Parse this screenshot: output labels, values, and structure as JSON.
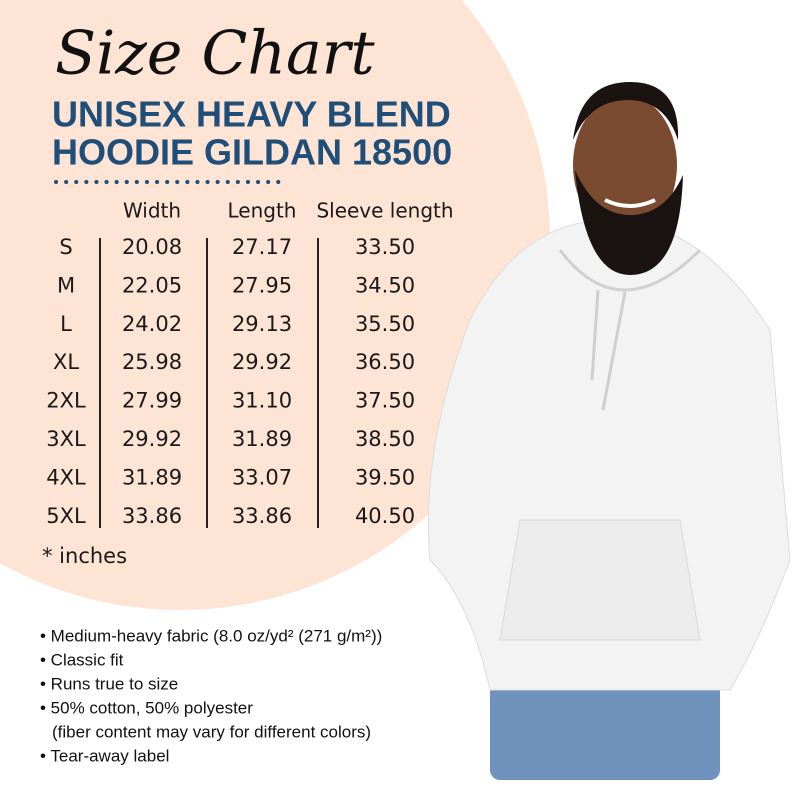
{
  "title": "Size Chart",
  "subtitle": [
    "UNISEX HEAVY BLEND",
    "HOODIE GILDAN 18500"
  ],
  "table": {
    "headers": [
      "Width",
      "Length",
      "Sleeve length"
    ],
    "rows": [
      {
        "size": "S",
        "values": [
          "20.08",
          "27.17",
          "33.50"
        ]
      },
      {
        "size": "M",
        "values": [
          "22.05",
          "27.95",
          "34.50"
        ]
      },
      {
        "size": "L",
        "values": [
          "24.02",
          "29.13",
          "35.50"
        ]
      },
      {
        "size": "XL",
        "values": [
          "25.98",
          "29.92",
          "36.50"
        ]
      },
      {
        "size": "2XL",
        "values": [
          "27.99",
          "31.10",
          "37.50"
        ]
      },
      {
        "size": "3XL",
        "values": [
          "29.92",
          "31.89",
          "38.50"
        ]
      },
      {
        "size": "4XL",
        "values": [
          "31.89",
          "33.07",
          "39.50"
        ]
      },
      {
        "size": "5XL",
        "values": [
          "33.86",
          "33.86",
          "40.50"
        ]
      }
    ],
    "note": "* inches"
  },
  "features": [
    [
      "• Medium-heavy fabric (8.0 oz/yd² (271 g/m²))"
    ],
    [
      "• Classic fit"
    ],
    [
      "• Runs true to size"
    ],
    [
      "• 50% cotton, 50% polyester",
      "(fiber content may vary for different colors)"
    ],
    [
      "• Tear-away label"
    ]
  ]
}
